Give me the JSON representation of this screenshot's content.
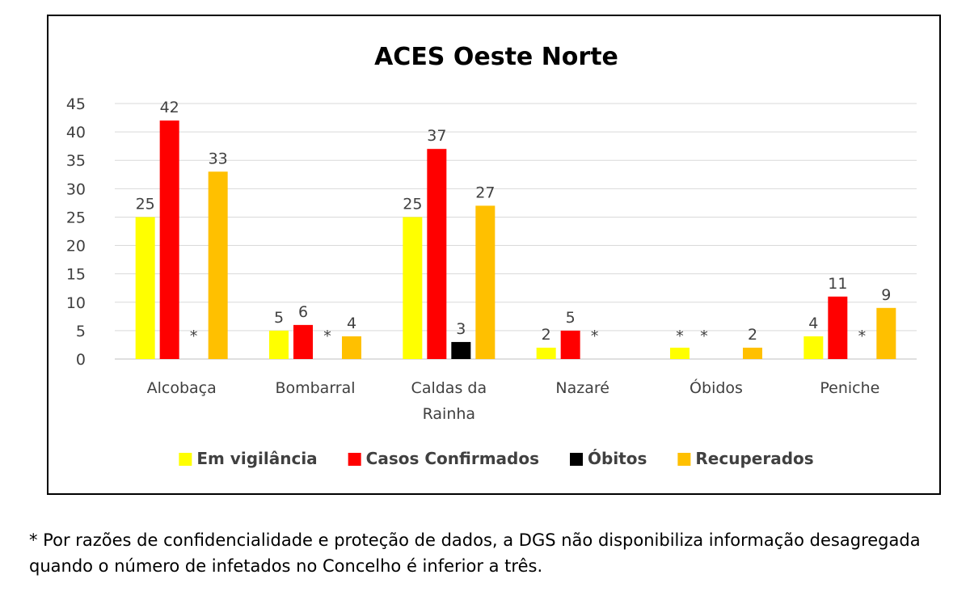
{
  "chart_data": {
    "type": "bar",
    "title": "ACES Oeste Norte",
    "categories": [
      "Alcobaça",
      "Bombarral",
      "Caldas da Rainha",
      "Nazaré",
      "Óbidos",
      "Peniche"
    ],
    "category_lines": [
      [
        "Alcobaça"
      ],
      [
        "Bombarral"
      ],
      [
        "Caldas da",
        "Rainha"
      ],
      [
        "Nazaré"
      ],
      [
        "Óbidos"
      ],
      [
        "Peniche"
      ]
    ],
    "series": [
      {
        "name": "Em vigilância",
        "color": "#FFFF00",
        "values": [
          25,
          5,
          25,
          2,
          2,
          4
        ],
        "labels": [
          "25",
          "5",
          "25",
          "2",
          "*",
          "4"
        ]
      },
      {
        "name": "Casos Confirmados",
        "color": "#FF0000",
        "values": [
          42,
          6,
          37,
          5,
          null,
          11
        ],
        "labels": [
          "42",
          "6",
          "37",
          "5",
          "*",
          "11"
        ]
      },
      {
        "name": "Óbitos",
        "color": "#000000",
        "values": [
          null,
          null,
          3,
          null,
          null,
          null
        ],
        "labels": [
          "*",
          "*",
          "3",
          "*",
          "",
          "*"
        ]
      },
      {
        "name": "Recuperados",
        "color": "#FFC000",
        "values": [
          33,
          4,
          27,
          null,
          2,
          9
        ],
        "labels": [
          "33",
          "4",
          "27",
          "",
          "2",
          "9"
        ]
      }
    ],
    "ylim": [
      0,
      45
    ],
    "yticks": [
      "0",
      "5",
      "10",
      "15",
      "20",
      "25",
      "30",
      "35",
      "40",
      "45"
    ],
    "grid": true,
    "legend_position": "bottom"
  },
  "footnote": "* Por razões de confidencialidade e proteção de dados, a DGS não disponibiliza informação desagregada quando o número de infetados no Concelho é inferior a três."
}
